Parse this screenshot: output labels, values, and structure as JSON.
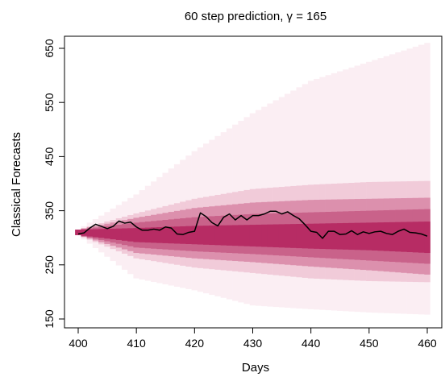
{
  "chart_data": {
    "type": "area",
    "title": "60 step prediction, γ = 165",
    "xlabel": "Days",
    "ylabel": "Classical Forecasts",
    "xlim": [
      400,
      460
    ],
    "ylim": [
      150,
      660
    ],
    "x_ticks": [
      400,
      410,
      420,
      430,
      440,
      450,
      460
    ],
    "y_ticks": [
      150,
      250,
      350,
      450,
      550,
      650
    ],
    "fan_colors": {
      "outer": "#fbeef3",
      "band4": "#f1cbd9",
      "band3": "#dc90ad",
      "band2": "#c9628a",
      "inner": "#b72c64",
      "line": "#000000"
    },
    "quantile_bands": {
      "note_levels": [
        "outer",
        "band4",
        "band3",
        "band2",
        "inner"
      ],
      "x": [
        400,
        410,
        420,
        430,
        440,
        450,
        460
      ],
      "outer_low": [
        305,
        225,
        203,
        175,
        168,
        162,
        158
      ],
      "outer_high": [
        315,
        380,
        460,
        530,
        590,
        625,
        660
      ],
      "band4_low": [
        305,
        262,
        245,
        235,
        225,
        220,
        218
      ],
      "band4_high": [
        315,
        345,
        372,
        390,
        398,
        403,
        405
      ],
      "band3_low": [
        305,
        272,
        262,
        255,
        247,
        240,
        232
      ],
      "band3_high": [
        315,
        337,
        355,
        365,
        370,
        372,
        374
      ],
      "band2_low": [
        305,
        282,
        275,
        270,
        264,
        258,
        252
      ],
      "band2_high": [
        315,
        328,
        338,
        344,
        347,
        350,
        353
      ],
      "inner_low": [
        305,
        292,
        288,
        284,
        280,
        277,
        272
      ],
      "inner_high": [
        315,
        318,
        322,
        324,
        326,
        328,
        330
      ]
    },
    "series": [
      {
        "x": [
          400,
          401,
          402,
          403,
          404,
          405,
          406,
          407,
          408,
          409,
          410,
          411,
          412,
          413,
          414,
          415,
          416,
          417,
          418,
          419,
          420,
          421,
          422,
          423,
          424,
          425,
          426,
          427,
          428,
          429,
          430,
          431,
          432,
          433,
          434,
          435,
          436,
          437,
          438,
          439,
          440,
          441,
          442,
          443,
          444,
          445,
          446,
          447,
          448,
          449,
          450,
          451,
          452,
          453,
          454,
          455,
          456,
          457,
          458,
          459,
          460
        ],
        "values": [
          307,
          309,
          318,
          325,
          321,
          317,
          321,
          331,
          327,
          329,
          320,
          314,
          314,
          316,
          314,
          320,
          318,
          307,
          306,
          310,
          312,
          346,
          339,
          328,
          322,
          338,
          344,
          333,
          341,
          333,
          341,
          341,
          344,
          349,
          349,
          344,
          348,
          341,
          335,
          324,
          312,
          310,
          299,
          312,
          312,
          306,
          307,
          313,
          306,
          311,
          308,
          311,
          312,
          308,
          306,
          312,
          316,
          310,
          309,
          307,
          303
        ]
      }
    ]
  }
}
